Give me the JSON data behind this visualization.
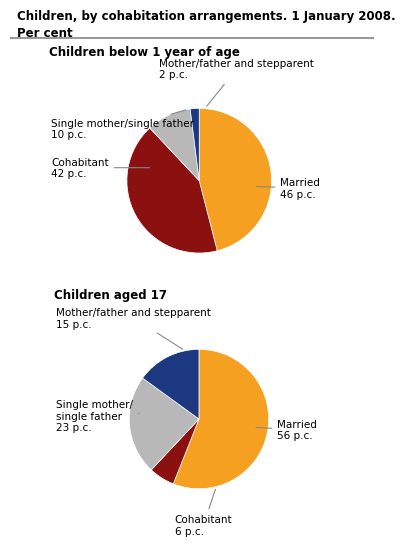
{
  "title_line1": "Children, by cohabitation arrangements. 1 January 2008.",
  "title_line2": "Per cent",
  "chart1_title": "Children below 1 year of age",
  "chart2_title": "Children aged 17",
  "chart1_values": [
    46,
    42,
    10,
    2
  ],
  "chart1_colors": [
    "#F5A020",
    "#8B1010",
    "#B8B8B8",
    "#1C3880"
  ],
  "chart2_values": [
    56,
    6,
    23,
    15
  ],
  "chart2_colors": [
    "#F5A020",
    "#8B1010",
    "#B8B8B8",
    "#1C3880"
  ],
  "bg_color": "#FFFFFF",
  "text_color": "#000000",
  "font_size": 7.5,
  "section_font_size": 8.5,
  "title_font_size": 8.5
}
